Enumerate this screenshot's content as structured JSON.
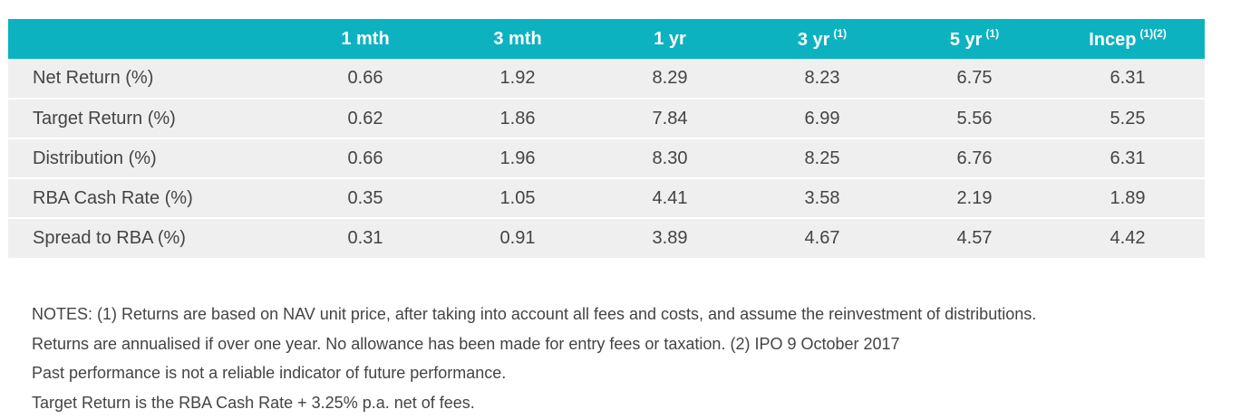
{
  "table": {
    "columns": [
      {
        "label": "1 mth",
        "sup": ""
      },
      {
        "label": "3 mth",
        "sup": ""
      },
      {
        "label": "1 yr",
        "sup": ""
      },
      {
        "label": "3 yr",
        "sup": "(1)"
      },
      {
        "label": "5 yr",
        "sup": "(1)"
      },
      {
        "label": "Incep",
        "sup": "(1)(2)"
      }
    ],
    "rows": [
      {
        "label": "Net Return (%)",
        "values": [
          "0.66",
          "1.92",
          "8.29",
          "8.23",
          "6.75",
          "6.31"
        ]
      },
      {
        "label": "Target Return (%)",
        "values": [
          "0.62",
          "1.86",
          "7.84",
          "6.99",
          "5.56",
          "5.25"
        ]
      },
      {
        "label": "Distribution (%)",
        "values": [
          "0.66",
          "1.96",
          "8.30",
          "8.25",
          "6.76",
          "6.31"
        ]
      },
      {
        "label": "RBA Cash Rate (%)",
        "values": [
          "0.35",
          "1.05",
          "4.41",
          "3.58",
          "2.19",
          "1.89"
        ]
      },
      {
        "label": "Spread to RBA (%)",
        "values": [
          "0.31",
          "0.91",
          "3.89",
          "4.67",
          "4.57",
          "4.42"
        ]
      }
    ]
  },
  "notes": [
    "NOTES: (1) Returns are based on NAV unit price, after taking into account all fees and costs, and assume the reinvestment of distributions.",
    "Returns are annualised if over one year. No allowance has been made for entry fees or taxation. (2) IPO 9 October 2017",
    "Past performance is not a reliable indicator of future performance.",
    "Target Return is the RBA Cash Rate + 3.25% p.a. net of fees."
  ],
  "colors": {
    "header_bg": "#0db2c1",
    "row_bg": "#efefef",
    "text": "#444444"
  }
}
